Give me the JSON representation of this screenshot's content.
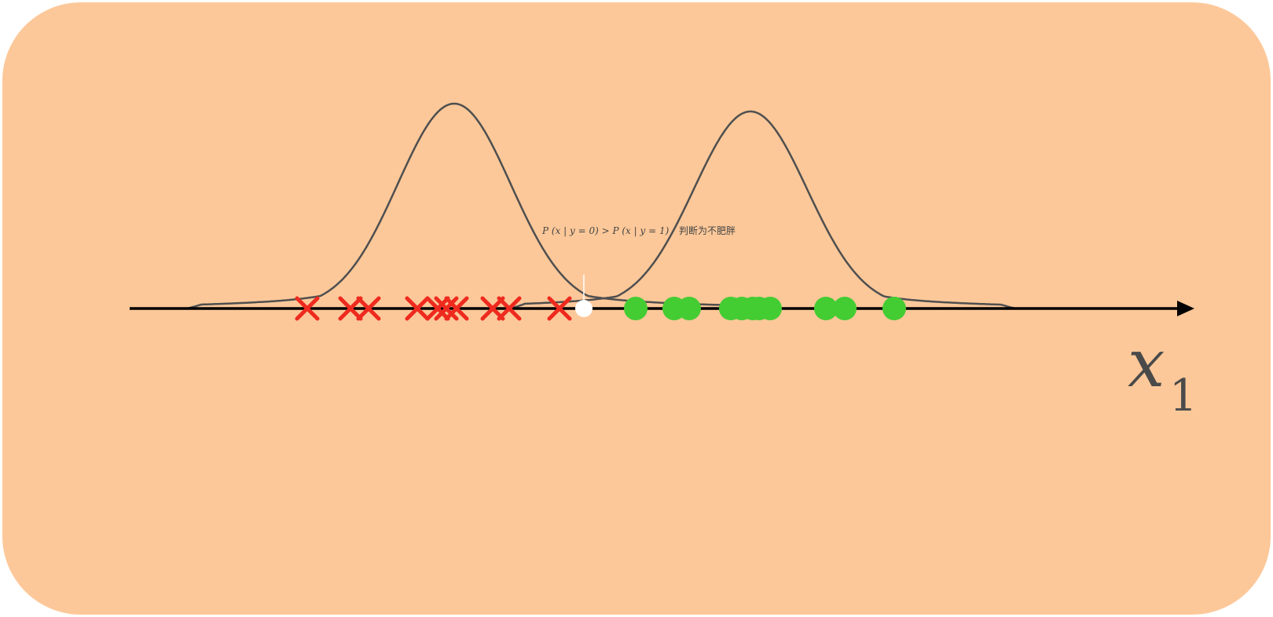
{
  "annotation": {
    "formula": "P (x | y = 0) > P (x | y = 1)",
    "judgement": "判断为不肥胖"
  },
  "axis": {
    "symbol": "x",
    "subscript": "1"
  },
  "colors": {
    "background": "#fdc899",
    "axis": "#000000",
    "curve": "#4f4f4f",
    "class0_marker": "#ee2a1f",
    "class1_marker": "#44cc33",
    "query_point": "#ffffff"
  },
  "icons": {
    "class0": "cross-icon",
    "class1": "dot-icon",
    "query": "query-point-icon"
  }
}
